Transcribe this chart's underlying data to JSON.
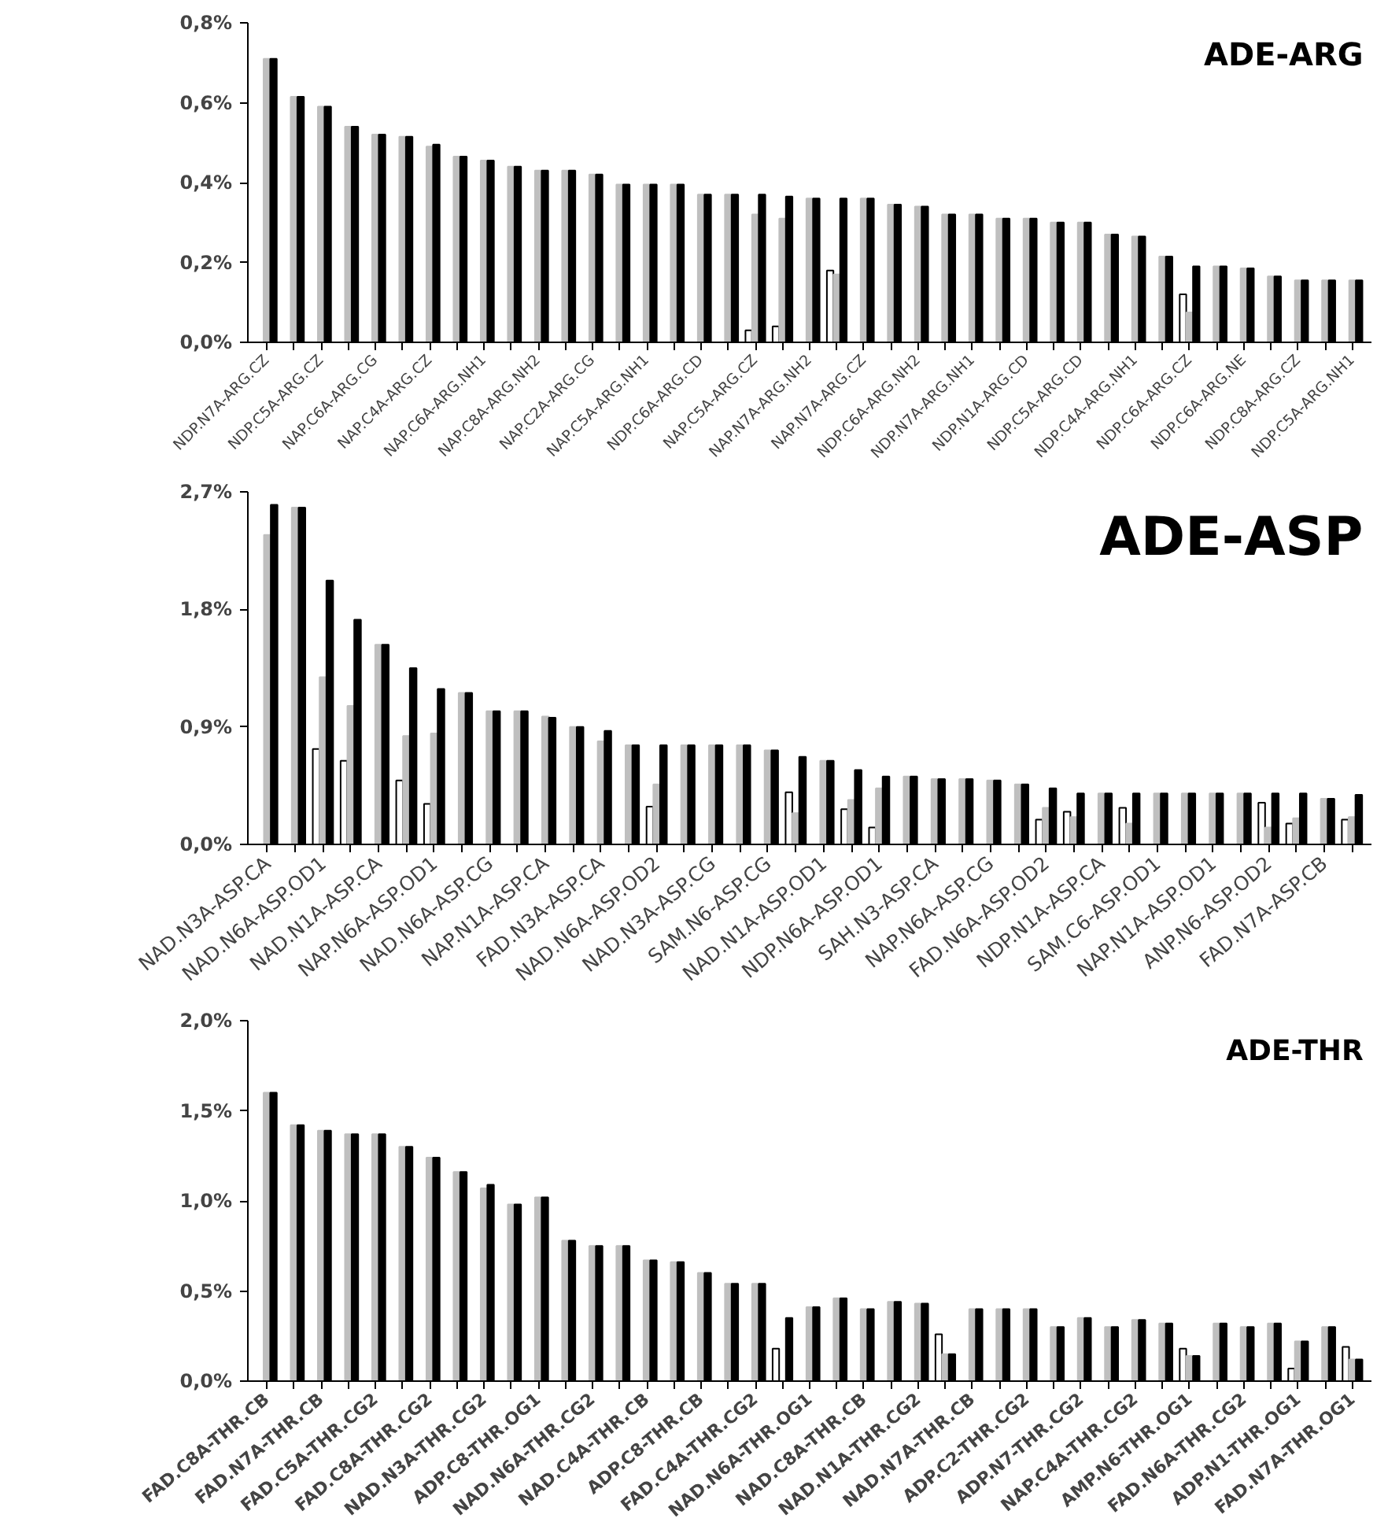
{
  "chart_data": [
    {
      "type": "bar",
      "title": "ADE-ARG",
      "categories": [
        "NDP.N7A-ARG.CZ",
        null,
        "NDP.C5A-ARG.CZ",
        null,
        "NAP.C6A-ARG.CG",
        null,
        "NAP.C4A-ARG.CZ",
        null,
        "NAP.C6A-ARG.NH1",
        null,
        "NAP.C8A-ARG.NH2",
        null,
        "NAP.C2A-ARG.CG",
        null,
        "NAP.C5A-ARG.NH1",
        null,
        "NDP.C6A-ARG.CD",
        null,
        "NAP.C5A-ARG.CZ",
        null,
        "NAP.N7A-ARG.NH2",
        null,
        "NAP.N7A-ARG.CZ",
        null,
        "NDP.C6A-ARG.NH2",
        null,
        "NDP.N7A-ARG.NH1",
        null,
        "NDP.N1A-ARG.CD",
        null,
        "NDP.C5A-ARG.CD",
        null,
        "NDP.C4A-ARG.NH1",
        null,
        "NDP.C6A-ARG.CZ",
        null,
        "NDP.C6A-ARG.NE",
        null,
        "NDP.C8A-ARG.CZ",
        null,
        "NDP.C5A-ARG.NH1"
      ],
      "series": [
        {
          "color": "#ffffff",
          "values": [
            null,
            null,
            null,
            null,
            null,
            null,
            null,
            null,
            null,
            null,
            null,
            null,
            null,
            null,
            null,
            null,
            null,
            null,
            0.03,
            0.04,
            null,
            0.18,
            null,
            null,
            null,
            null,
            null,
            null,
            null,
            null,
            null,
            null,
            null,
            null,
            0.12,
            null,
            null,
            null,
            null,
            null,
            null
          ]
        },
        {
          "color": "#bfbfbf",
          "values": [
            0.71,
            0.615,
            0.59,
            0.54,
            0.52,
            0.515,
            0.49,
            0.465,
            0.455,
            0.44,
            0.43,
            0.43,
            0.42,
            0.395,
            0.395,
            0.395,
            0.37,
            0.37,
            0.32,
            0.31,
            0.36,
            0.17,
            0.36,
            0.345,
            0.34,
            0.32,
            0.32,
            0.31,
            0.31,
            0.3,
            0.3,
            0.27,
            0.265,
            0.215,
            0.075,
            0.19,
            0.185,
            0.165,
            0.155,
            0.155,
            0.155
          ]
        },
        {
          "color": "#000000",
          "values": [
            0.71,
            0.615,
            0.59,
            0.54,
            0.52,
            0.515,
            0.495,
            0.465,
            0.455,
            0.44,
            0.43,
            0.43,
            0.42,
            0.395,
            0.395,
            0.395,
            0.37,
            0.37,
            0.37,
            0.365,
            0.36,
            0.36,
            0.36,
            0.345,
            0.34,
            0.32,
            0.32,
            0.31,
            0.31,
            0.3,
            0.3,
            0.27,
            0.265,
            0.215,
            0.19,
            0.19,
            0.185,
            0.165,
            0.155,
            0.155,
            0.155
          ]
        }
      ],
      "ylim": [
        0,
        0.8
      ],
      "yticks": [
        {
          "value": 0,
          "label": "0,0%"
        },
        {
          "value": 0.2,
          "label": "0,2%"
        },
        {
          "value": 0.4,
          "label": "0,4%"
        },
        {
          "value": 0.6,
          "label": "0,6%"
        },
        {
          "value": 0.8,
          "label": "0,8%"
        }
      ]
    },
    {
      "type": "bar",
      "title": "ADE-ASP",
      "categories": [
        "NAD.N3A-ASP.CA",
        null,
        "NAD.N6A-ASP.OD1",
        null,
        "NAD.N1A-ASP.CA",
        null,
        "NAP.N6A-ASP.OD1",
        null,
        "NAD.N6A-ASP.CG",
        null,
        "NAP.N1A-ASP.CA",
        null,
        "FAD.N3A-ASP.CA",
        null,
        "NAD.N6A-ASP.OD2",
        null,
        "NAD.N3A-ASP.CG",
        null,
        "SAM.N6-ASP.CG",
        null,
        "NAD.N1A-ASP.OD1",
        null,
        "NDP.N6A-ASP.OD1",
        null,
        "SAH.N3-ASP.CA",
        null,
        "NAP.N6A-ASP.CG",
        null,
        "FAD.N6A-ASP.OD2",
        null,
        "NDP.N1A-ASP.CA",
        null,
        "SAM.C6-ASP.OD1",
        null,
        "NAP.N1A-ASP.OD1",
        null,
        "ANP.N6-ASP.OD2",
        null,
        "FAD.N7A-ASP.CB",
        null
      ],
      "series": [
        {
          "color": "#ffffff",
          "values": [
            null,
            null,
            0.73,
            0.64,
            null,
            0.49,
            0.31,
            null,
            null,
            null,
            null,
            null,
            null,
            null,
            0.29,
            null,
            null,
            null,
            null,
            0.4,
            null,
            0.27,
            0.13,
            null,
            null,
            null,
            null,
            null,
            0.19,
            0.25,
            null,
            0.28,
            null,
            null,
            null,
            null,
            0.32,
            0.16,
            null,
            0.19
          ]
        },
        {
          "color": "#bfbfbf",
          "values": [
            2.37,
            2.58,
            1.28,
            1.06,
            1.53,
            0.83,
            0.85,
            1.16,
            1.02,
            1.02,
            0.98,
            0.9,
            0.79,
            0.76,
            0.46,
            0.76,
            0.76,
            0.76,
            0.72,
            0.24,
            0.64,
            0.34,
            0.43,
            0.52,
            0.5,
            0.5,
            0.49,
            0.46,
            0.28,
            0.21,
            0.39,
            0.16,
            0.39,
            0.39,
            0.39,
            0.39,
            0.13,
            0.2,
            0.35,
            0.21
          ]
        },
        {
          "color": "#000000",
          "values": [
            2.6,
            2.58,
            2.02,
            1.72,
            1.53,
            1.35,
            1.19,
            1.16,
            1.02,
            1.02,
            0.97,
            0.9,
            0.87,
            0.76,
            0.76,
            0.76,
            0.76,
            0.76,
            0.72,
            0.67,
            0.64,
            0.57,
            0.52,
            0.52,
            0.5,
            0.5,
            0.49,
            0.46,
            0.43,
            0.39,
            0.39,
            0.39,
            0.39,
            0.39,
            0.39,
            0.39,
            0.39,
            0.39,
            0.35,
            0.38
          ]
        }
      ],
      "ylim": [
        0,
        2.7
      ],
      "yticks": [
        {
          "value": 0,
          "label": "0,0%"
        },
        {
          "value": 0.9,
          "label": "0,9%"
        },
        {
          "value": 1.8,
          "label": "1,8%"
        },
        {
          "value": 2.7,
          "label": "2,7%"
        }
      ]
    },
    {
      "type": "bar",
      "title": "ADE-THR",
      "categories": [
        "FAD.C8A-THR.CB",
        null,
        "FAD.N7A-THR.CB",
        null,
        "FAD.C5A-THR.CG2",
        null,
        "FAD.C8A-THR.CG2",
        null,
        "NAD.N3A-THR.CG2",
        null,
        "ADP.C8-THR.OG1",
        null,
        "NAD.N6A-THR.CG2",
        null,
        "NAD.C4A-THR.CB",
        null,
        "ADP.C8-THR.CB",
        null,
        "FAD.C4A-THR.CG2",
        null,
        "NAD.N6A-THR.OG1",
        null,
        "NAD.C8A-THR.CB",
        null,
        "NAD.N1A-THR.CG2",
        null,
        "NAD.N7A-THR.CB",
        null,
        "ADP.C2-THR.CG2",
        null,
        "ADP.N7-THR.CG2",
        null,
        "NAP.C4A-THR.CG2",
        null,
        "AMP.N6-THR.OG1",
        null,
        "FAD.N6A-THR.CG2",
        null,
        "ADP.N1-THR.OG1",
        null,
        "FAD.N7A-THR.OG1"
      ],
      "series": [
        {
          "color": "#ffffff",
          "values": [
            null,
            null,
            null,
            null,
            null,
            null,
            null,
            null,
            null,
            null,
            null,
            null,
            null,
            null,
            null,
            null,
            null,
            null,
            null,
            0.18,
            null,
            null,
            null,
            null,
            null,
            0.26,
            null,
            null,
            null,
            null,
            null,
            null,
            null,
            null,
            0.18,
            null,
            null,
            null,
            0.07,
            null,
            0.19
          ]
        },
        {
          "color": "#bfbfbf",
          "values": [
            1.6,
            1.42,
            1.39,
            1.37,
            1.37,
            1.3,
            1.24,
            1.16,
            1.07,
            0.98,
            1.02,
            0.78,
            0.75,
            0.75,
            0.67,
            0.66,
            0.6,
            0.54,
            0.54,
            null,
            0.41,
            0.46,
            0.4,
            0.44,
            0.43,
            0.15,
            0.4,
            0.4,
            0.4,
            0.3,
            0.35,
            0.3,
            0.34,
            0.32,
            0.14,
            0.32,
            0.3,
            0.32,
            0.22,
            0.3,
            0.12
          ]
        },
        {
          "color": "#000000",
          "values": [
            1.6,
            1.42,
            1.39,
            1.37,
            1.37,
            1.3,
            1.24,
            1.16,
            1.09,
            0.98,
            1.02,
            0.78,
            0.75,
            0.75,
            0.67,
            0.66,
            0.6,
            0.54,
            0.54,
            0.35,
            0.41,
            0.46,
            0.4,
            0.44,
            0.43,
            0.15,
            0.4,
            0.4,
            0.4,
            0.3,
            0.35,
            0.3,
            0.34,
            0.32,
            0.14,
            0.32,
            0.3,
            0.32,
            0.22,
            0.3,
            0.12
          ]
        }
      ],
      "ylim": [
        0,
        2.0
      ],
      "yticks": [
        {
          "value": 0,
          "label": "0,0%"
        },
        {
          "value": 0.5,
          "label": "0,5%"
        },
        {
          "value": 1.0,
          "label": "1,0%"
        },
        {
          "value": 1.5,
          "label": "1,5%"
        },
        {
          "value": 2.0,
          "label": "2,0%"
        }
      ]
    }
  ]
}
